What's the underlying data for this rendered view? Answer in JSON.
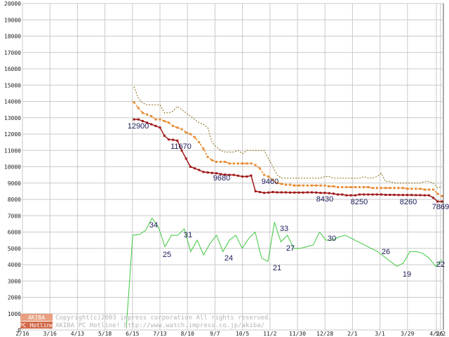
{
  "chart_data": {
    "type": "line",
    "title": "",
    "xlabel": "",
    "ylabel": "",
    "ylim": [
      0,
      20000
    ],
    "yticks": [
      0,
      1000,
      2000,
      3000,
      4000,
      5000,
      6000,
      7000,
      8000,
      9000,
      10000,
      11000,
      12000,
      13000,
      14000,
      15000,
      16000,
      17000,
      18000,
      19000,
      20000
    ],
    "x_tick_labels": [
      "2/16",
      "3/16",
      "4/13",
      "5/18",
      "6/15",
      "7/13",
      "8/10",
      "9/7",
      "10/5",
      "11/2",
      "11/30",
      "12/28",
      "2/1",
      "3/1",
      "3/29",
      "4/26",
      "5/2"
    ],
    "grid": true,
    "legend": "none",
    "series": [
      {
        "color": "#8a6a10",
        "style": "dotted",
        "values": [
          14900,
          14200,
          13900,
          13800,
          13800,
          13800,
          13800,
          13300,
          13300,
          13400,
          13700,
          13500,
          13300,
          13100,
          12900,
          12700,
          12600,
          12400,
          11500,
          11200,
          11000,
          10900,
          10900,
          10900,
          11000,
          10800,
          11000,
          11000,
          11000,
          11000,
          11000,
          10500,
          10000,
          9500,
          9300,
          9300,
          9300,
          9300,
          9300,
          9300,
          9300,
          9300,
          9300,
          9300,
          9400,
          9400,
          9300,
          9300,
          9300,
          9300,
          9300,
          9300,
          9300,
          9400,
          9300,
          9300,
          9400,
          9600,
          9100,
          9100,
          9000,
          9000,
          9000,
          9000,
          9000,
          9000,
          9000,
          9100,
          9100,
          9000,
          8700,
          8800
        ]
      },
      {
        "color": "#e88a30",
        "style": "dashed-markers",
        "values": [
          13950,
          13600,
          13300,
          13200,
          13100,
          12900,
          12900,
          12800,
          12700,
          12500,
          12400,
          12300,
          12100,
          12000,
          11800,
          11500,
          11100,
          10600,
          10400,
          10300,
          10300,
          10300,
          10200,
          10200,
          10200,
          10200,
          10200,
          10200,
          10100,
          9900,
          9500,
          9400,
          9200,
          9000,
          8950,
          8900,
          8900,
          8850,
          8850,
          8850,
          8850,
          8850,
          8850,
          8850,
          8850,
          8800,
          8800,
          8750,
          8750,
          8750,
          8750,
          8750,
          8750,
          8750,
          8750,
          8700,
          8700,
          8700,
          8700,
          8700,
          8700,
          8700,
          8700,
          8650,
          8650,
          8650,
          8650,
          8600,
          8600,
          8600,
          8350,
          8200
        ]
      },
      {
        "color": "#a01818",
        "style": "solid-markers",
        "values": [
          12900,
          12900,
          12800,
          12700,
          12600,
          12500,
          12400,
          11900,
          11670,
          11650,
          11600,
          11000,
          10500,
          10000,
          9900,
          9800,
          9680,
          9650,
          9620,
          9600,
          9550,
          9520,
          9500,
          9500,
          9450,
          9400,
          9400,
          9460,
          8500,
          8450,
          8400,
          8420,
          8450,
          8430,
          8430,
          8430,
          8420,
          8420,
          8420,
          8420,
          8430,
          8430,
          8420,
          8400,
          8400,
          8380,
          8350,
          8300,
          8300,
          8250,
          8250,
          8250,
          8300,
          8300,
          8300,
          8300,
          8300,
          8300,
          8280,
          8280,
          8280,
          8270,
          8270,
          8270,
          8270,
          8260,
          8260,
          8250,
          8250,
          8100,
          7869,
          7869
        ]
      },
      {
        "color": "#3ec83e",
        "style": "solid",
        "values": [
          100,
          5800,
          5850,
          6100,
          6850,
          6300,
          5100,
          5800,
          5800,
          6200,
          4800,
          5500,
          4600,
          5300,
          5800,
          4800,
          5500,
          5800,
          5000,
          5600,
          6000,
          4400,
          4200,
          6600,
          5400,
          5800,
          5000,
          5000,
          5100,
          5200,
          6000,
          5500,
          5500,
          5700,
          5800,
          5600,
          5400,
          5200,
          5000,
          4800,
          4500,
          4200,
          3900,
          4100,
          4800,
          4800,
          4700,
          4400,
          3900,
          4300
        ]
      }
    ],
    "data_labels": [
      "12900",
      "11670",
      "9680",
      "9460",
      "8430",
      "8250",
      "8260",
      "7869",
      "34",
      "25",
      "31",
      "24",
      "21",
      "33",
      "27",
      "30",
      "26",
      "19",
      "22"
    ]
  },
  "credit": {
    "line1": "Copyright(c)2003 impress corporation All rights reserved.",
    "line2": "AKIBA PC Hotline!  http://www.watch.impress.co.jp/akiba/",
    "badge_top": "AKIBA",
    "badge_bottom": "PC Hotline"
  },
  "colors": {
    "grid": "#c9c9c9",
    "axis": "#555555",
    "label": "#1a1a5a"
  }
}
